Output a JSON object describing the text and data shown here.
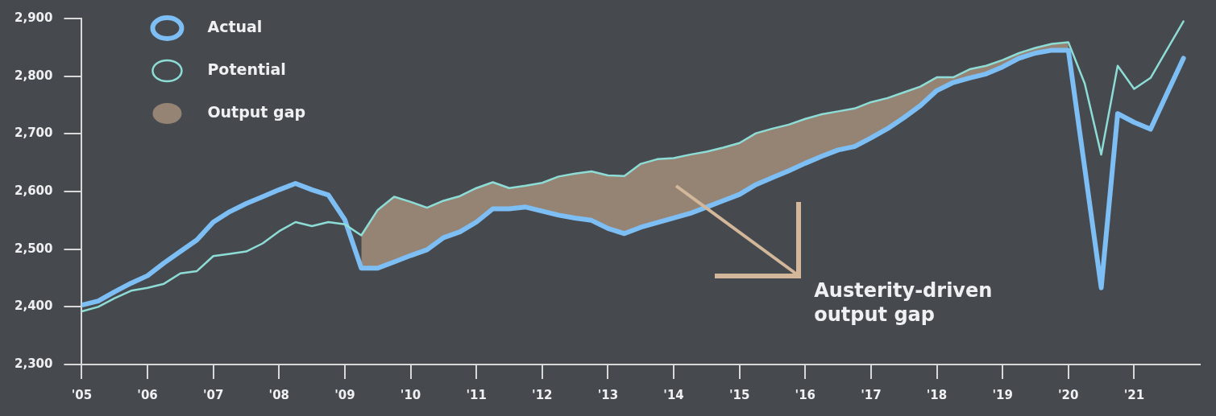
{
  "chart_data": {
    "type": "line",
    "x": [
      2005,
      2005.25,
      2005.5,
      2005.75,
      2006,
      2006.25,
      2006.5,
      2006.75,
      2007,
      2007.25,
      2007.5,
      2007.75,
      2008,
      2008.25,
      2008.5,
      2008.75,
      2009,
      2009.25,
      2009.5,
      2009.75,
      2010,
      2010.25,
      2010.5,
      2010.75,
      2011,
      2011.25,
      2011.5,
      2011.75,
      2012,
      2012.25,
      2012.5,
      2012.75,
      2013,
      2013.25,
      2013.5,
      2013.75,
      2014,
      2014.25,
      2014.5,
      2014.75,
      2015,
      2015.25,
      2015.5,
      2015.75,
      2016,
      2016.25,
      2016.5,
      2016.75,
      2017,
      2017.25,
      2017.5,
      2017.75,
      2018,
      2018.25,
      2018.5,
      2018.75,
      2019,
      2019.25,
      2019.5,
      2019.75,
      2020,
      2020.25,
      2020.5,
      2020.75,
      2021,
      2021.25,
      2021.5,
      2021.75
    ],
    "xlim": [
      2005,
      2022
    ],
    "xticks": [
      {
        "value": 2005,
        "label": "'05"
      },
      {
        "value": 2006,
        "label": "'06"
      },
      {
        "value": 2007,
        "label": "'07"
      },
      {
        "value": 2008,
        "label": "'08"
      },
      {
        "value": 2009,
        "label": "'09"
      },
      {
        "value": 2010,
        "label": "'10"
      },
      {
        "value": 2011,
        "label": "'11"
      },
      {
        "value": 2012,
        "label": "'12"
      },
      {
        "value": 2013,
        "label": "'13"
      },
      {
        "value": 2014,
        "label": "'14"
      },
      {
        "value": 2015,
        "label": "'15"
      },
      {
        "value": 2016,
        "label": "'16"
      },
      {
        "value": 2017,
        "label": "'17"
      },
      {
        "value": 2018,
        "label": "'18"
      },
      {
        "value": 2019,
        "label": "'19"
      },
      {
        "value": 2020,
        "label": "'20"
      },
      {
        "value": 2021,
        "label": "'21"
      }
    ],
    "ylim": [
      2300,
      2900
    ],
    "yticks": [
      {
        "value": 2300,
        "label": "2,300"
      },
      {
        "value": 2400,
        "label": "2,400"
      },
      {
        "value": 2500,
        "label": "2,500"
      },
      {
        "value": 2600,
        "label": "2,600"
      },
      {
        "value": 2700,
        "label": "2,700"
      },
      {
        "value": 2800,
        "label": "2,800"
      },
      {
        "value": 2900,
        "label": "2,900"
      }
    ],
    "grid": false,
    "legend": "top left",
    "series": [
      {
        "name": "Actual",
        "color": "#7dbef5",
        "values": [
          2403,
          2410,
          2426,
          2441,
          2454,
          2476,
          2496,
          2516,
          2547,
          2565,
          2579,
          2591,
          2603,
          2614,
          2603,
          2594,
          2551,
          2467,
          2467,
          2478,
          2489,
          2499,
          2520,
          2530,
          2547,
          2570,
          2570,
          2573,
          2566,
          2559,
          2554,
          2550,
          2536,
          2527,
          2538,
          2546,
          2554,
          2562,
          2573,
          2584,
          2595,
          2612,
          2624,
          2636,
          2649,
          2661,
          2672,
          2678,
          2693,
          2709,
          2728,
          2749,
          2775,
          2789,
          2797,
          2804,
          2816,
          2831,
          2840,
          2845,
          2845,
          2640,
          2433,
          2735,
          2720,
          2708,
          2770,
          2831
        ]
      },
      {
        "name": "Potential",
        "color": "#8edcd6",
        "values": [
          2392,
          2400,
          2415,
          2428,
          2433,
          2440,
          2458,
          2462,
          2488,
          2492,
          2496,
          2510,
          2531,
          2547,
          2540,
          2547,
          2543,
          2524,
          2568,
          2591,
          2582,
          2572,
          2584,
          2592,
          2606,
          2616,
          2606,
          2610,
          2615,
          2626,
          2631,
          2635,
          2628,
          2627,
          2648,
          2656,
          2658,
          2664,
          2669,
          2676,
          2684,
          2701,
          2709,
          2716,
          2726,
          2734,
          2739,
          2744,
          2755,
          2762,
          2772,
          2782,
          2798,
          2798,
          2812,
          2818,
          2828,
          2840,
          2849,
          2856,
          2859,
          2787,
          2664,
          2818,
          2778,
          2797,
          2846,
          2895
        ]
      },
      {
        "name": "Output gap",
        "type": "area",
        "color": "#c9ab8e",
        "values": [
          null,
          null,
          null,
          null,
          null,
          null,
          null,
          null,
          null,
          null,
          null,
          null,
          null,
          null,
          null,
          null,
          null,
          2524,
          2568,
          2591,
          2582,
          2572,
          2584,
          2592,
          2606,
          2616,
          2606,
          2610,
          2615,
          2626,
          2631,
          2635,
          2628,
          2627,
          2648,
          2656,
          2658,
          2664,
          2669,
          2676,
          2684,
          2701,
          2709,
          2716,
          2726,
          2734,
          2739,
          2744,
          2755,
          2762,
          2772,
          2782,
          2798,
          2798,
          2812,
          2818,
          2828,
          2840,
          2849,
          2856,
          2859,
          null,
          null,
          null,
          null,
          null,
          null,
          null
        ]
      }
    ],
    "annotations": [
      "Austerity-driven output gap"
    ]
  }
}
